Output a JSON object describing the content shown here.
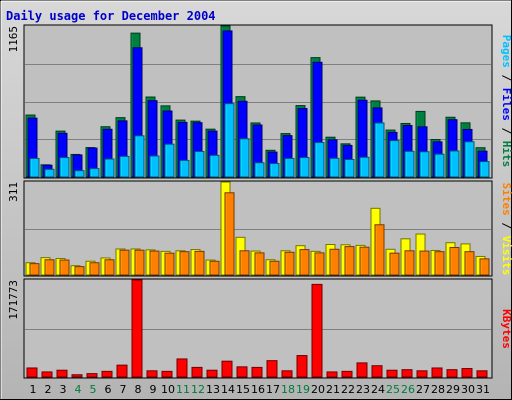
{
  "chart_data": {
    "type": "bar",
    "title": "Daily usage for December 2004",
    "days": [
      "1",
      "2",
      "3",
      "4",
      "5",
      "6",
      "7",
      "8",
      "9",
      "10",
      "11",
      "12",
      "13",
      "14",
      "15",
      "16",
      "17",
      "18",
      "19",
      "20",
      "21",
      "22",
      "23",
      "24",
      "25",
      "26",
      "27",
      "28",
      "29",
      "30",
      "31"
    ],
    "weekend_days": [
      4,
      5,
      11,
      12,
      18,
      19,
      25,
      26
    ],
    "colors": {
      "title": "#0000cc",
      "weekday_label": "#000000",
      "weekend_label": "#007b3e",
      "hits": "#008040",
      "files": "#0000ff",
      "pages": "#00c0ff",
      "visits": "#ffff00",
      "sites": "#ff8000",
      "kbytes": "#ff0000",
      "panel_bg": "#c0c0c0",
      "grid": "#808080"
    },
    "panels": {
      "hits": {
        "ymax_label": "1165",
        "ylim": [
          0,
          1165
        ],
        "legend": [
          {
            "text": "Pages",
            "color": "#00c0ff"
          },
          {
            "text": " / ",
            "color": "#000000"
          },
          {
            "text": "Files",
            "color": "#0000ff"
          },
          {
            "text": " / ",
            "color": "#000000"
          },
          {
            "text": "Hits",
            "color": "#008040"
          }
        ],
        "series": [
          {
            "name": "Hits",
            "values": [
              478,
              94,
              354,
              174,
              227,
              388,
              458,
              1110,
              617,
              549,
              439,
              431,
              369,
              1165,
              620,
              417,
              206,
              335,
              551,
              921,
              307,
              256,
              616,
              587,
              362,
              413,
              506,
              289,
              461,
              418,
              226
            ]
          },
          {
            "name": "Files",
            "values": [
              454,
              91,
              337,
              170,
              223,
              368,
              433,
              997,
              589,
              509,
              421,
              419,
              354,
              1127,
              584,
              401,
              192,
              319,
              528,
              885,
              287,
              244,
              592,
              533,
              344,
              397,
              387,
              271,
              442,
              367,
              199
            ]
          },
          {
            "name": "Pages",
            "values": [
              143,
              59,
              150,
              49,
              65,
              139,
              159,
              318,
              162,
              253,
              128,
              197,
              167,
              566,
              295,
              110,
              104,
              143,
              150,
              266,
              144,
              135,
              152,
              417,
              281,
              198,
              195,
              176,
              201,
              272,
              119
            ]
          }
        ]
      },
      "visits": {
        "ymax_label": "311",
        "ylim": [
          0,
          311
        ],
        "legend": [
          {
            "text": "Sites",
            "color": "#ff8000"
          },
          {
            "text": " / ",
            "color": "#000000"
          },
          {
            "text": "Visits",
            "color": "#ffff00"
          }
        ],
        "series": [
          {
            "name": "Visits",
            "values": [
              41,
              58,
              55,
              31,
              46,
              57,
              87,
              87,
              84,
              79,
              81,
              85,
              50,
              311,
              126,
              80,
              51,
              81,
              98,
              79,
              102,
              101,
              99,
              223,
              86,
              121,
              137,
              82,
              108,
              104,
              62
            ]
          },
          {
            "name": "Sites",
            "values": [
              38,
              51,
              50,
              28,
              41,
              51,
              83,
              83,
              80,
              73,
              78,
              79,
              46,
              275,
              81,
              74,
              46,
              76,
              85,
              74,
              86,
              95,
              93,
              168,
              73,
              81,
              80,
              78,
              92,
              78,
              54
            ]
          }
        ]
      },
      "kbytes": {
        "ymax_label": "171773",
        "ylim": [
          0,
          171773
        ],
        "legend": [
          {
            "text": "KBytes",
            "color": "#ff0000"
          }
        ],
        "series": [
          {
            "name": "KBytes",
            "values": [
              16000,
              9000,
              12000,
              4000,
              6000,
              10000,
              21000,
              171773,
              11000,
              10000,
              32000,
              17000,
              12000,
              28000,
              18000,
              17000,
              29000,
              11000,
              38000,
              164000,
              9000,
              10000,
              25000,
              20000,
              12000,
              13000,
              11000,
              16000,
              13000,
              15000,
              11000
            ]
          }
        ]
      }
    }
  }
}
